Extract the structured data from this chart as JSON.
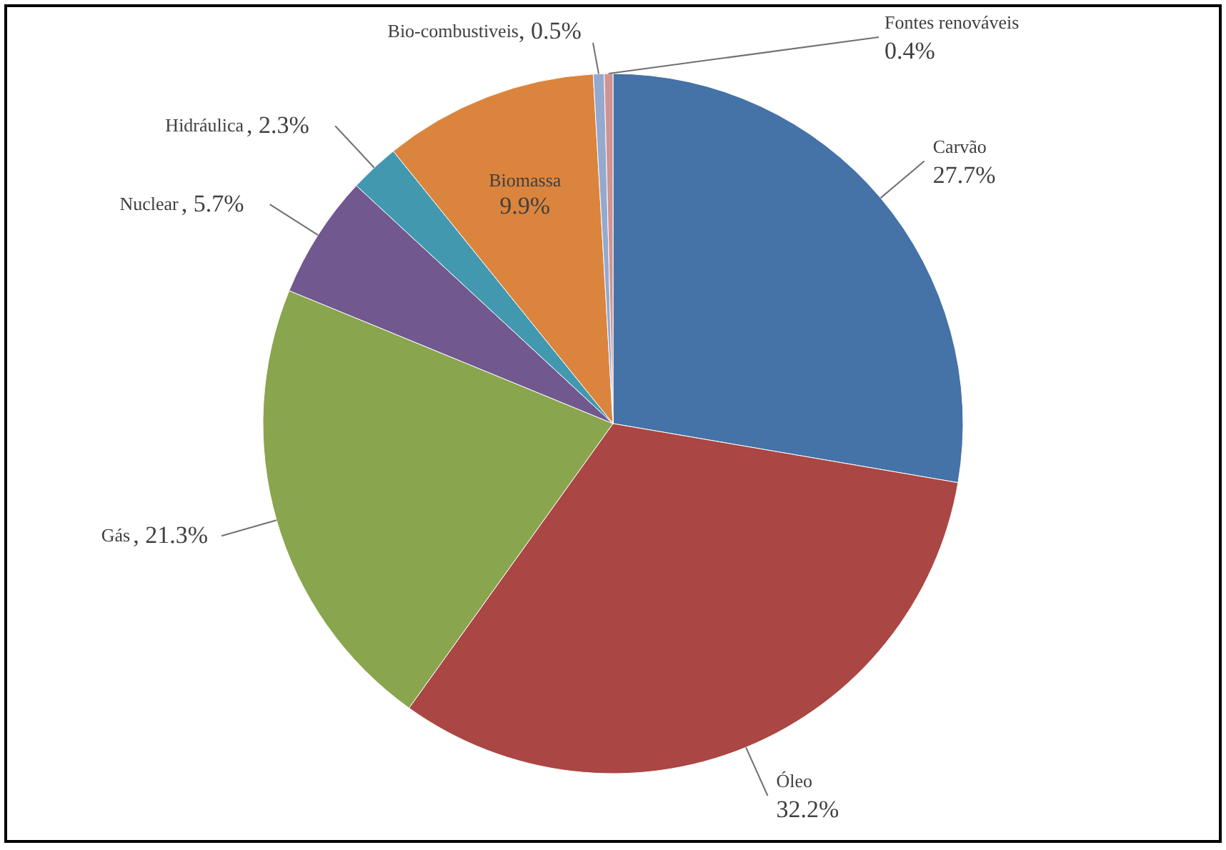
{
  "chart_data": {
    "type": "pie",
    "categories": [
      "Carvão",
      "Óleo",
      "Gás",
      "Nuclear",
      "Hidráulica",
      "Biomassa",
      "Bio-combustiveis",
      "Fontes renováveis"
    ],
    "values": [
      27.7,
      32.2,
      21.3,
      5.7,
      2.3,
      9.9,
      0.5,
      0.4
    ],
    "colors": [
      "#4572a7",
      "#aa4643",
      "#89a54e",
      "#71588f",
      "#4198af",
      "#db843d",
      "#93a9cf",
      "#d19392"
    ],
    "value_labels": [
      "27.7%",
      "32.2%",
      ", 21.3%",
      ", 5.7%",
      ", 2.3%",
      "9.9%",
      ", 0.5%",
      "0.4%"
    ],
    "legend": false
  }
}
